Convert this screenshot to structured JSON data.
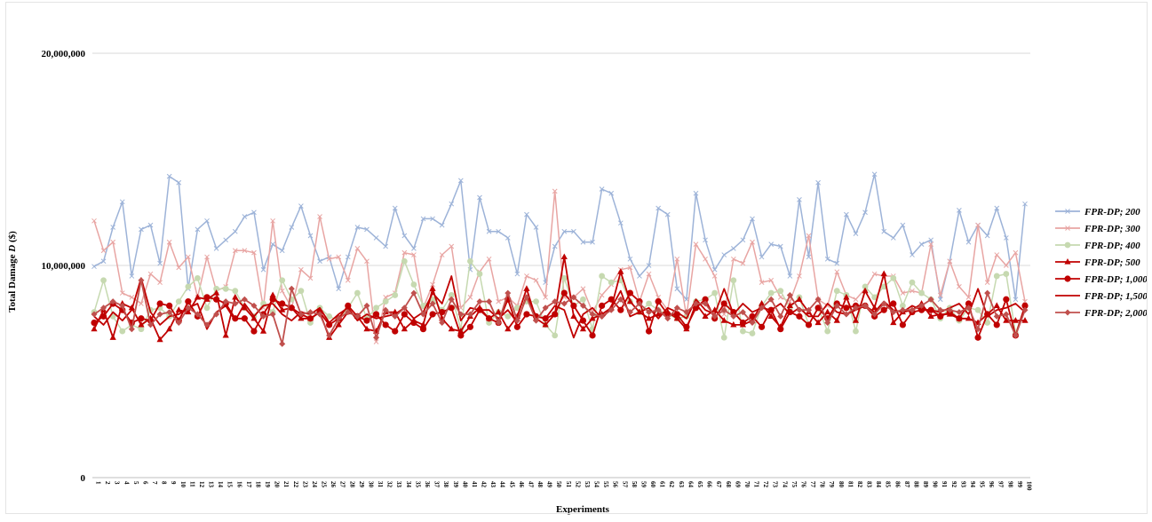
{
  "chart_data": {
    "type": "line",
    "title": "",
    "xlabel": "Experiments",
    "ylabel_prefix": "Total Damage ",
    "ylabel_var": "D",
    "ylabel_suffix": " ($)",
    "ylim": [
      0,
      20000000
    ],
    "yticks": [
      0,
      10000000,
      20000000
    ],
    "ytick_labels": [
      "0",
      "10,000,000",
      "20,000,000"
    ],
    "grid": "horizontal",
    "legend_position": "right",
    "x": [
      1,
      2,
      3,
      4,
      5,
      6,
      7,
      8,
      9,
      10,
      11,
      12,
      13,
      14,
      15,
      16,
      17,
      18,
      19,
      20,
      21,
      22,
      23,
      24,
      25,
      26,
      27,
      28,
      29,
      30,
      31,
      32,
      33,
      34,
      35,
      36,
      37,
      38,
      39,
      40,
      41,
      42,
      43,
      44,
      45,
      46,
      47,
      48,
      49,
      50,
      51,
      52,
      53,
      54,
      55,
      56,
      57,
      58,
      59,
      60,
      61,
      62,
      63,
      64,
      65,
      66,
      67,
      68,
      69,
      70,
      71,
      72,
      73,
      74,
      75,
      76,
      77,
      78,
      79,
      80,
      81,
      82,
      83,
      84,
      85,
      86,
      87,
      88,
      89,
      90,
      91,
      92,
      93,
      94,
      95,
      96,
      97,
      98,
      99,
      100
    ],
    "series": [
      {
        "name": "FPR-DP; 200",
        "color": "#9db3d8",
        "marker": "x",
        "values": [
          9950000,
          10200000,
          11800000,
          13000000,
          9500000,
          11700000,
          11900000,
          10100000,
          14200000,
          13900000,
          8900000,
          11700000,
          12100000,
          10800000,
          11200000,
          11600000,
          12300000,
          12500000,
          9800000,
          11000000,
          10700000,
          11800000,
          12800000,
          11400000,
          10200000,
          10400000,
          8900000,
          10400000,
          11800000,
          11700000,
          11300000,
          10900000,
          12700000,
          11400000,
          10800000,
          12200000,
          12200000,
          11900000,
          12900000,
          14000000,
          9800000,
          13200000,
          11600000,
          11600000,
          11300000,
          9600000,
          12400000,
          11800000,
          9200000,
          10900000,
          11600000,
          11600000,
          11100000,
          11100000,
          13600000,
          13400000,
          12000000,
          10300000,
          9500000,
          10000000,
          12700000,
          12400000,
          8900000,
          8400000,
          13400000,
          11200000,
          9800000,
          10500000,
          10800000,
          11200000,
          12200000,
          10400000,
          11000000,
          10900000,
          9500000,
          13100000,
          10400000,
          13900000,
          10300000,
          10100000,
          12400000,
          11500000,
          12500000,
          14300000,
          11600000,
          11300000,
          11900000,
          10500000,
          11000000,
          11200000,
          8400000,
          10200000,
          12600000,
          11100000,
          11900000,
          11400000,
          12700000,
          11300000,
          8400000,
          12900000
        ]
      },
      {
        "name": "FPR-DP; 300",
        "color": "#e8a5a3",
        "marker": "x",
        "values": [
          12100000,
          10700000,
          11100000,
          8700000,
          8500000,
          8200000,
          9600000,
          9200000,
          11100000,
          9900000,
          10400000,
          8500000,
          10400000,
          8800000,
          9000000,
          10700000,
          10700000,
          10600000,
          8000000,
          12100000,
          8800000,
          8000000,
          9800000,
          9400000,
          12300000,
          10300000,
          10400000,
          9300000,
          10800000,
          10200000,
          6400000,
          8500000,
          8700000,
          10600000,
          10500000,
          8000000,
          9100000,
          10500000,
          10900000,
          8000000,
          8500000,
          9700000,
          10300000,
          8300000,
          8500000,
          8100000,
          9500000,
          9300000,
          8500000,
          13500000,
          8500000,
          8500000,
          8900000,
          7800000,
          8600000,
          9100000,
          9800000,
          9900000,
          8300000,
          9600000,
          8500000,
          7900000,
          10300000,
          7600000,
          11000000,
          10300000,
          9500000,
          7700000,
          10300000,
          10100000,
          11100000,
          9200000,
          9300000,
          8500000,
          8300000,
          9500000,
          11400000,
          8400000,
          8100000,
          9700000,
          8600000,
          8400000,
          8900000,
          9600000,
          9500000,
          9500000,
          8700000,
          8800000,
          8700000,
          11000000,
          8600000,
          10200000,
          9000000,
          8500000,
          11900000,
          9200000,
          10500000,
          10000000,
          10600000,
          8300000
        ]
      },
      {
        "name": "FPR-DP; 400",
        "color": "#c6d9b0",
        "marker": "circle",
        "values": [
          7800000,
          9300000,
          7600000,
          6900000,
          7200000,
          7000000,
          7900000,
          8000000,
          7600000,
          8300000,
          9000000,
          9400000,
          8000000,
          8900000,
          8900000,
          8800000,
          8000000,
          7600000,
          8200000,
          7800000,
          9300000,
          8400000,
          8800000,
          7300000,
          8000000,
          7600000,
          7400000,
          8000000,
          8700000,
          7500000,
          8000000,
          8300000,
          8600000,
          10200000,
          9100000,
          8100000,
          8400000,
          7900000,
          8600000,
          7000000,
          10200000,
          9600000,
          7300000,
          7800000,
          7600000,
          8000000,
          8300000,
          8300000,
          7200000,
          6700000,
          9400000,
          8100000,
          8400000,
          7000000,
          9500000,
          9200000,
          9300000,
          8300000,
          7800000,
          8200000,
          7900000,
          7700000,
          7500000,
          7600000,
          8300000,
          8400000,
          8700000,
          6600000,
          9300000,
          6900000,
          6800000,
          8100000,
          8700000,
          8800000,
          8000000,
          8500000,
          7200000,
          8000000,
          6900000,
          8800000,
          8600000,
          6900000,
          9000000,
          8500000,
          9000000,
          9400000,
          8100000,
          9200000,
          8700000,
          8400000,
          7500000,
          8000000,
          7400000,
          8000000,
          7900000,
          7300000,
          9500000,
          9600000,
          6800000,
          8100000
        ]
      },
      {
        "name": "FPR-DP; 500",
        "color": "#c00000",
        "marker": "triangle",
        "values": [
          7000000,
          7900000,
          6600000,
          8200000,
          8000000,
          7200000,
          7500000,
          6500000,
          7000000,
          7900000,
          7800000,
          8500000,
          8400000,
          8700000,
          6700000,
          8500000,
          8000000,
          7500000,
          6900000,
          8600000,
          7900000,
          8000000,
          7500000,
          7500000,
          7800000,
          6600000,
          7200000,
          7800000,
          7600000,
          7000000,
          6900000,
          7800000,
          7800000,
          7000000,
          7400000,
          7200000,
          8900000,
          7500000,
          7000000,
          6900000,
          7600000,
          8000000,
          7500000,
          7800000,
          7000000,
          7600000,
          8900000,
          7500000,
          7200000,
          7700000,
          10400000,
          7600000,
          7000000,
          7500000,
          7700000,
          8000000,
          9700000,
          8300000,
          7800000,
          7500000,
          7700000,
          7800000,
          7500000,
          7000000,
          8200000,
          7600000,
          7900000,
          7400000,
          7200000,
          7200000,
          7400000,
          8200000,
          7600000,
          7100000,
          8100000,
          8400000,
          7800000,
          7300000,
          7800000,
          7400000,
          8500000,
          7400000,
          8800000,
          8000000,
          9600000,
          7300000,
          7800000,
          7900000,
          8200000,
          7600000,
          7700000,
          7700000,
          7500000,
          7500000,
          7300000,
          7700000,
          8100000,
          7400000,
          7400000,
          7400000
        ]
      },
      {
        "name": "FPR-DP; 1,000",
        "color": "#c00000",
        "marker": "dot",
        "values": [
          7300000,
          7600000,
          8200000,
          7900000,
          7300000,
          7500000,
          7400000,
          8200000,
          8100000,
          7400000,
          8300000,
          7600000,
          8500000,
          8400000,
          8200000,
          7500000,
          7500000,
          6900000,
          7700000,
          8400000,
          8200000,
          8000000,
          7700000,
          7500000,
          7800000,
          7200000,
          7500000,
          8100000,
          7600000,
          7400000,
          7700000,
          7200000,
          6900000,
          7700000,
          7300000,
          7000000,
          7700000,
          7800000,
          8000000,
          6700000,
          7100000,
          7900000,
          7500000,
          7300000,
          8400000,
          7100000,
          7700000,
          7600000,
          7500000,
          7700000,
          8700000,
          8100000,
          7400000,
          6700000,
          8100000,
          8400000,
          7900000,
          8700000,
          8300000,
          6900000,
          8300000,
          7700000,
          7700000,
          7100000,
          8000000,
          8400000,
          7500000,
          8200000,
          7800000,
          7300000,
          7600000,
          7100000,
          7900000,
          7000000,
          7800000,
          7600000,
          7200000,
          8000000,
          7500000,
          8200000,
          8000000,
          8100000,
          8100000,
          7600000,
          7900000,
          8200000,
          7200000,
          7800000,
          7900000,
          7900000,
          7600000,
          7800000,
          7500000,
          8200000,
          6600000,
          7700000,
          7200000,
          8400000,
          6700000,
          8100000
        ]
      },
      {
        "name": "FPR-DP; 1,500",
        "color": "#c00000",
        "marker": "none",
        "values": [
          7600000,
          7200000,
          7800000,
          7400000,
          7900000,
          9400000,
          7800000,
          7200000,
          7600000,
          7700000,
          8000000,
          8200000,
          7000000,
          7800000,
          8100000,
          7400000,
          8200000,
          7600000,
          8100000,
          8200000,
          7700000,
          7400000,
          7800000,
          7700000,
          8000000,
          7300000,
          7700000,
          8000000,
          7400000,
          7700000,
          7500000,
          7600000,
          7700000,
          8000000,
          7500000,
          7800000,
          8700000,
          8200000,
          9500000,
          7400000,
          8000000,
          7900000,
          7900000,
          7500000,
          7900000,
          7300000,
          8600000,
          7600000,
          7500000,
          8100000,
          7900000,
          6600000,
          7700000,
          8000000,
          7500000,
          8000000,
          8800000,
          7600000,
          7800000,
          8000000,
          7500000,
          8000000,
          7800000,
          7500000,
          8400000,
          7900000,
          7700000,
          8900000,
          7700000,
          8200000,
          7800000,
          8000000,
          7900000,
          8200000,
          7700000,
          8000000,
          7600000,
          7600000,
          8200000,
          7800000,
          7700000,
          7900000,
          8100000,
          7800000,
          8300000,
          7900000,
          7800000,
          8100000,
          7900000,
          7900000,
          7800000,
          8000000,
          8200000,
          7700000,
          8900000,
          7600000,
          7900000,
          8000000,
          8200000,
          7800000
        ]
      },
      {
        "name": "FPR-DP; 2,000",
        "color": "#c0504d",
        "marker": "diamond",
        "values": [
          7700000,
          8000000,
          8300000,
          8100000,
          7000000,
          9300000,
          7200000,
          7700000,
          7800000,
          7300000,
          8000000,
          7700000,
          7200000,
          7700000,
          8300000,
          8200000,
          8400000,
          8100000,
          7600000,
          7700000,
          6300000,
          8900000,
          7700000,
          7800000,
          7700000,
          6700000,
          7500000,
          7800000,
          7600000,
          8100000,
          6600000,
          7900000,
          7600000,
          8000000,
          8700000,
          7700000,
          8200000,
          7300000,
          8400000,
          7700000,
          7700000,
          8300000,
          8300000,
          7300000,
          8700000,
          7400000,
          8500000,
          7400000,
          8000000,
          8300000,
          8200000,
          8500000,
          8100000,
          7700000,
          7600000,
          7900000,
          8400000,
          7800000,
          8200000,
          7800000,
          7900000,
          7500000,
          8000000,
          7800000,
          8200000,
          8200000,
          7600000,
          7900000,
          7600000,
          7800000,
          7300000,
          8000000,
          8400000,
          7600000,
          8600000,
          7900000,
          7900000,
          8400000,
          7300000,
          8100000,
          7700000,
          8000000,
          8100000,
          7700000,
          8200000,
          7800000,
          7900000,
          7900000,
          8100000,
          8400000,
          7900000,
          7900000,
          7800000,
          8000000,
          7000000,
          8700000,
          7600000,
          7700000,
          6700000,
          7900000
        ]
      }
    ]
  }
}
